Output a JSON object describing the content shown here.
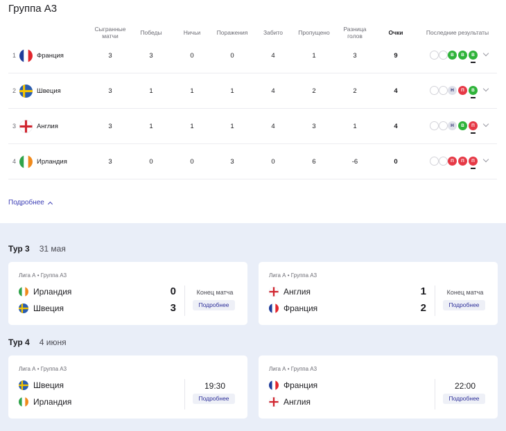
{
  "group_title": "Группа А3",
  "table": {
    "headers": {
      "played": "Сыгранные матчи",
      "wins": "Победы",
      "draws": "Ничьи",
      "losses": "Поражения",
      "scored": "Забито",
      "conceded": "Пропущено",
      "diff": "Разница голов",
      "points": "Очки",
      "recent": "Последние результаты"
    },
    "rows": [
      {
        "rank": "1",
        "team": "Франция",
        "played": "3",
        "wins": "3",
        "draws": "0",
        "losses": "0",
        "scored": "4",
        "conceded": "1",
        "diff": "3",
        "points": "9",
        "results": [
          "В",
          "В",
          "В"
        ]
      },
      {
        "rank": "2",
        "team": "Швеция",
        "played": "3",
        "wins": "1",
        "draws": "1",
        "losses": "1",
        "scored": "4",
        "conceded": "2",
        "diff": "2",
        "points": "4",
        "results": [
          "Н",
          "П",
          "В"
        ]
      },
      {
        "rank": "3",
        "team": "Англия",
        "played": "3",
        "wins": "1",
        "draws": "1",
        "losses": "1",
        "scored": "4",
        "conceded": "3",
        "diff": "1",
        "points": "4",
        "results": [
          "Н",
          "В",
          "П"
        ]
      },
      {
        "rank": "4",
        "team": "Ирландия",
        "played": "3",
        "wins": "0",
        "draws": "0",
        "losses": "3",
        "scored": "0",
        "conceded": "6",
        "diff": "-6",
        "points": "0",
        "results": [
          "П",
          "П",
          "П"
        ]
      }
    ]
  },
  "more_link": "Подробнее",
  "colors": {
    "win": "#2fb33a",
    "draw": "#dfe1ea",
    "loss": "#e63946",
    "accent": "#3b3db5",
    "background": "#e9eef8"
  },
  "tours": [
    {
      "name": "Тур 3",
      "date": "31 мая",
      "matches": [
        {
          "league": "Лига А • Группа А3",
          "home": "Ирландия",
          "away": "Швеция",
          "home_score": "0",
          "away_score": "3",
          "status": "Конец матча",
          "button": "Подробнее"
        },
        {
          "league": "Лига А • Группа А3",
          "home": "Англия",
          "away": "Франция",
          "home_score": "1",
          "away_score": "2",
          "status": "Конец матча",
          "button": "Подробнее"
        }
      ]
    },
    {
      "name": "Тур 4",
      "date": "4 июня",
      "matches": [
        {
          "league": "Лига А • Группа А3",
          "home": "Швеция",
          "away": "Ирландия",
          "time": "19:30",
          "button": "Подробнее"
        },
        {
          "league": "Лига А • Группа А3",
          "home": "Франция",
          "away": "Англия",
          "time": "22:00",
          "button": "Подробнее"
        }
      ]
    }
  ]
}
